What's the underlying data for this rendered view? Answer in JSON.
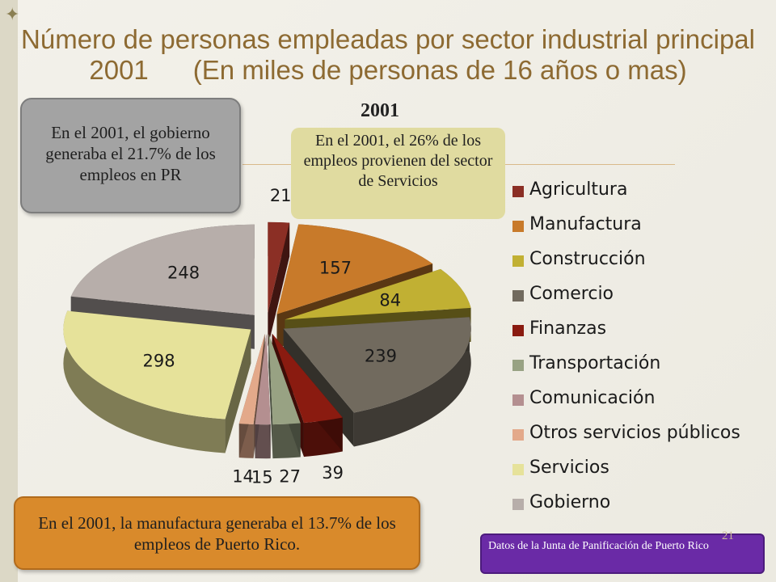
{
  "slide": {
    "title_line1": "Número de personas empleadas por sector industrial principal",
    "title_line2": "2001      (En miles de personas de 16 años o mas)",
    "page_number": "21",
    "corner_icon": "four-point-star-icon"
  },
  "callouts": {
    "government": "En el 2001, el gobierno generaba el 21.7% de los empleos en PR",
    "services": "En el 2001, el 26% de los empleos provienen del sector de  Servicios",
    "manufacturing": "En el 2001, la manufactura generaba el 13.7% de los empleos de Puerto Rico.",
    "source": "Datos de la Junta de Panificación de Puerto Rico"
  },
  "chart_data": {
    "type": "pie",
    "title": "2001",
    "categories": [
      "Agricultura",
      "Manufactura",
      "Construcción",
      "Comercio",
      "Finanzas",
      "Transportación",
      "Comunicación",
      "Otros servicios públicos",
      "Servicios",
      "Gobierno"
    ],
    "values": [
      21,
      157,
      84,
      239,
      39,
      27,
      15,
      14,
      298,
      248
    ],
    "data_labels": [
      "21",
      "157",
      "84",
      "239",
      "39",
      "27",
      "15",
      "14",
      "298",
      "248"
    ],
    "colors": [
      "#8b2f25",
      "#c87a2a",
      "#c1b033",
      "#716a5e",
      "#8a1b10",
      "#98a283",
      "#b48f90",
      "#e3a98a",
      "#e6e29a",
      "#b7aeaa"
    ],
    "legend_position": "right",
    "exploded": true,
    "three_d": true
  }
}
